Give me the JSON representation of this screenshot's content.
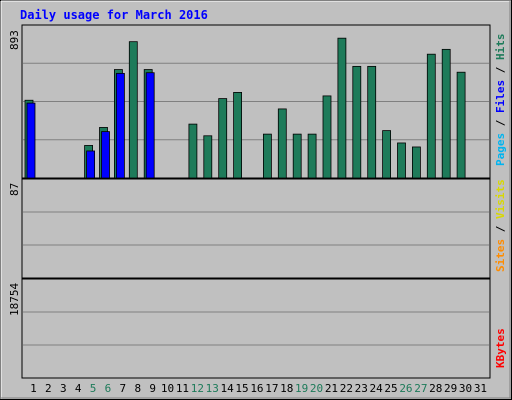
{
  "chart_data": {
    "type": "bar",
    "title": "Daily usage for March 2016",
    "categories": [
      "1",
      "2",
      "3",
      "4",
      "5",
      "6",
      "7",
      "8",
      "9",
      "10",
      "11",
      "12",
      "13",
      "14",
      "15",
      "16",
      "17",
      "18",
      "19",
      "20",
      "21",
      "22",
      "23",
      "24",
      "25",
      "26",
      "27",
      "28",
      "29",
      "30",
      "31"
    ],
    "weekend_days": [
      "5",
      "6",
      "12",
      "13",
      "19",
      "20",
      "26",
      "27"
    ],
    "panels": [
      {
        "name": "hits-files-pages",
        "scale_max": 893,
        "scale_label": "893",
        "legend": [
          "Pages",
          "Files",
          "Hits"
        ],
        "series": [
          {
            "name": "Hits",
            "color": "#1e7b5a",
            "values": [
              466,
              0,
              0,
              0,
              195,
              303,
              650,
              817,
              650,
              0,
              0,
              323,
              253,
              476,
              513,
              0,
              263,
              414,
              263,
              263,
              492,
              838,
              669,
              669,
              284,
              210,
              186,
              742,
              771,
              634,
              0
            ]
          },
          {
            "name": "Files",
            "color": "#0000ff",
            "values": [
              449,
              0,
              0,
              0,
              162,
              278,
              627,
              0,
              631,
              0,
              0,
              0,
              0,
              0,
              0,
              0,
              0,
              0,
              0,
              0,
              0,
              0,
              0,
              0,
              0,
              0,
              0,
              0,
              0,
              0,
              0
            ]
          },
          {
            "name": "Pages",
            "color": "#00b4f0",
            "values": [
              0,
              0,
              0,
              0,
              0,
              0,
              0,
              0,
              0,
              0,
              0,
              0,
              0,
              0,
              0,
              0,
              0,
              0,
              0,
              0,
              0,
              0,
              0,
              0,
              0,
              0,
              0,
              0,
              0,
              0,
              0
            ]
          }
        ]
      },
      {
        "name": "visits-sites",
        "scale_max": 87,
        "scale_label": "87",
        "legend": [
          "Sites",
          "Visits"
        ],
        "series": [
          {
            "name": "Visits",
            "color": "#ffff00",
            "values": [
              0,
              0,
              0,
              0,
              0,
              0,
              0,
              0,
              0,
              0,
              0,
              0,
              0,
              0,
              0,
              0,
              0,
              0,
              0,
              0,
              0,
              0,
              0,
              0,
              0,
              0,
              0,
              0,
              0,
              0,
              0
            ]
          },
          {
            "name": "Sites",
            "color": "#ff8c00",
            "values": [
              0,
              0,
              0,
              0,
              0,
              0,
              0,
              0,
              0,
              0,
              0,
              0,
              0,
              0,
              0,
              0,
              0,
              0,
              0,
              0,
              0,
              0,
              0,
              0,
              0,
              0,
              0,
              0,
              0,
              0,
              0
            ]
          }
        ]
      },
      {
        "name": "kbytes",
        "scale_max": 18754,
        "scale_label": "18754",
        "legend": [
          "KBytes"
        ],
        "series": [
          {
            "name": "KBytes",
            "color": "#ff0000",
            "values": [
              0,
              0,
              0,
              0,
              0,
              0,
              0,
              0,
              0,
              0,
              0,
              0,
              0,
              0,
              0,
              0,
              0,
              0,
              0,
              0,
              0,
              0,
              0,
              0,
              0,
              0,
              0,
              0,
              0,
              0,
              0
            ]
          }
        ]
      }
    ]
  }
}
